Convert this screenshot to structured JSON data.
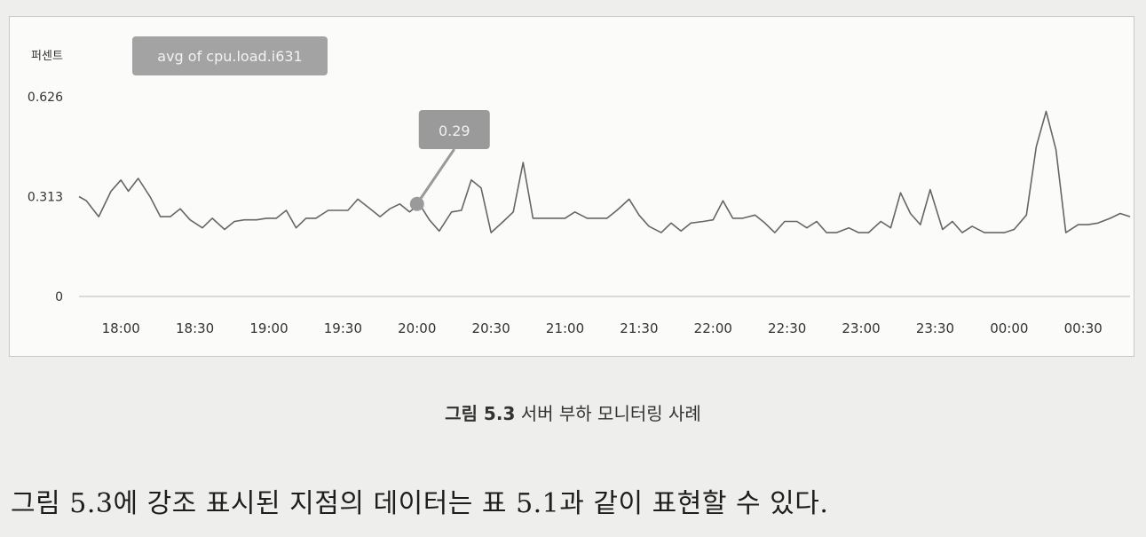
{
  "chart_data": {
    "type": "line",
    "y_unit_label": "퍼센트",
    "series": [
      {
        "name": "avg of cpu.load.i631"
      }
    ],
    "ylim": [
      0,
      0.626
    ],
    "y_ticks": [
      0,
      0.313,
      0.626
    ],
    "y_tick_labels": [
      "0",
      "0.313",
      "0.626"
    ],
    "x_range": [
      "17:43",
      "00:49"
    ],
    "x_tick_labels": [
      "18:00",
      "18:30",
      "19:00",
      "19:30",
      "20:00",
      "20:30",
      "21:00",
      "21:30",
      "22:00",
      "22:30",
      "23:00",
      "23:30",
      "00:00",
      "00:30"
    ],
    "highlight": {
      "time": "20:00",
      "value": 0.29,
      "label": "0.29"
    },
    "grid": false,
    "colors": {
      "line": "#666666",
      "annotation": "#9a9a9a",
      "baseline": "#cfcfcf"
    },
    "points": [
      [
        "17:43",
        0.313
      ],
      [
        "17:46",
        0.3
      ],
      [
        "17:51",
        0.25
      ],
      [
        "17:56",
        0.33
      ],
      [
        "18:00",
        0.365
      ],
      [
        "18:03",
        0.33
      ],
      [
        "18:07",
        0.37
      ],
      [
        "18:12",
        0.31
      ],
      [
        "18:16",
        0.25
      ],
      [
        "18:20",
        0.25
      ],
      [
        "18:24",
        0.275
      ],
      [
        "18:28",
        0.24
      ],
      [
        "18:33",
        0.215
      ],
      [
        "18:37",
        0.245
      ],
      [
        "18:42",
        0.21
      ],
      [
        "18:46",
        0.235
      ],
      [
        "18:50",
        0.24
      ],
      [
        "18:55",
        0.24
      ],
      [
        "18:59",
        0.245
      ],
      [
        "19:03",
        0.245
      ],
      [
        "19:07",
        0.27
      ],
      [
        "19:11",
        0.215
      ],
      [
        "19:15",
        0.245
      ],
      [
        "19:19",
        0.245
      ],
      [
        "19:24",
        0.27
      ],
      [
        "19:28",
        0.27
      ],
      [
        "19:32",
        0.27
      ],
      [
        "19:36",
        0.305
      ],
      [
        "19:41",
        0.275
      ],
      [
        "19:45",
        0.25
      ],
      [
        "19:49",
        0.275
      ],
      [
        "19:53",
        0.29
      ],
      [
        "19:57",
        0.265
      ],
      [
        "20:01",
        0.29
      ],
      [
        "20:05",
        0.24
      ],
      [
        "20:09",
        0.205
      ],
      [
        "20:14",
        0.265
      ],
      [
        "20:18",
        0.27
      ],
      [
        "20:22",
        0.365
      ],
      [
        "20:26",
        0.34
      ],
      [
        "20:30",
        0.2
      ],
      [
        "20:35",
        0.235
      ],
      [
        "20:39",
        0.265
      ],
      [
        "20:43",
        0.42
      ],
      [
        "20:47",
        0.245
      ],
      [
        "20:52",
        0.245
      ],
      [
        "20:56",
        0.245
      ],
      [
        "21:00",
        0.245
      ],
      [
        "21:04",
        0.265
      ],
      [
        "21:09",
        0.245
      ],
      [
        "21:13",
        0.245
      ],
      [
        "21:17",
        0.245
      ],
      [
        "21:21",
        0.27
      ],
      [
        "21:26",
        0.305
      ],
      [
        "21:30",
        0.255
      ],
      [
        "21:34",
        0.22
      ],
      [
        "21:39",
        0.2
      ],
      [
        "21:43",
        0.23
      ],
      [
        "21:47",
        0.205
      ],
      [
        "21:51",
        0.23
      ],
      [
        "21:56",
        0.235
      ],
      [
        "22:00",
        0.24
      ],
      [
        "22:04",
        0.3
      ],
      [
        "22:08",
        0.245
      ],
      [
        "22:12",
        0.245
      ],
      [
        "22:17",
        0.255
      ],
      [
        "22:21",
        0.23
      ],
      [
        "22:25",
        0.2
      ],
      [
        "22:29",
        0.235
      ],
      [
        "22:34",
        0.235
      ],
      [
        "22:38",
        0.215
      ],
      [
        "22:42",
        0.235
      ],
      [
        "22:46",
        0.2
      ],
      [
        "22:50",
        0.2
      ],
      [
        "22:55",
        0.215
      ],
      [
        "22:59",
        0.2
      ],
      [
        "23:03",
        0.2
      ],
      [
        "23:08",
        0.235
      ],
      [
        "23:12",
        0.215
      ],
      [
        "23:16",
        0.325
      ],
      [
        "23:20",
        0.26
      ],
      [
        "23:24",
        0.225
      ],
      [
        "23:28",
        0.335
      ],
      [
        "23:33",
        0.21
      ],
      [
        "23:37",
        0.235
      ],
      [
        "23:41",
        0.2
      ],
      [
        "23:45",
        0.22
      ],
      [
        "23:50",
        0.2
      ],
      [
        "23:54",
        0.2
      ],
      [
        "23:58",
        0.2
      ],
      [
        "00:02",
        0.21
      ],
      [
        "00:07",
        0.255
      ],
      [
        "00:11",
        0.47
      ],
      [
        "00:15",
        0.58
      ],
      [
        "00:19",
        0.46
      ],
      [
        "00:23",
        0.2
      ],
      [
        "00:28",
        0.225
      ],
      [
        "00:32",
        0.225
      ],
      [
        "00:36",
        0.23
      ],
      [
        "00:41",
        0.245
      ],
      [
        "00:45",
        0.26
      ],
      [
        "00:49",
        0.25
      ]
    ]
  },
  "caption": {
    "figure_number": "그림 5.3",
    "text": "서버 부하 모니터링 사례"
  },
  "body_text": "그림 5.3에 강조 표시된 지점의 데이터는 표 5.1과 같이 표현할 수 있다."
}
